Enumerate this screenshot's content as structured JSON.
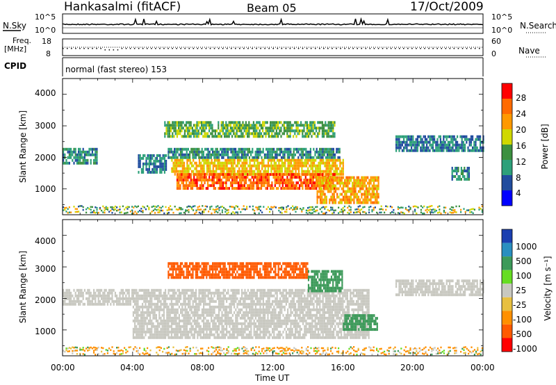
{
  "header": {
    "station": "Hankasalmi (fitACF)",
    "beam": "Beam 05",
    "date": "17/Oct/2009",
    "mode": "normal (fast stereo) 153"
  },
  "noise_panel": {
    "left_label": "N.Sky",
    "right_label": "N.Search",
    "left_ticks": [
      "10^5",
      "10^0"
    ],
    "right_ticks": [
      "10^5",
      "10^0"
    ]
  },
  "freq_panel": {
    "left_label_line1": "Freq.",
    "left_label_line2": "[MHz]",
    "right_label": "Nave",
    "left_ticks": [
      "18",
      "8"
    ],
    "right_ticks": [
      "60",
      "0"
    ]
  },
  "cpid_label": "CPID",
  "power_panel": {
    "ylabel": "Slant Range [km]",
    "colorbar_label": "Power [dB]",
    "colorbar_ticks": [
      "28",
      "24",
      "20",
      "16",
      "12",
      "8",
      "4"
    ],
    "colorbar_colors": [
      "#ff0000",
      "#ff6a00",
      "#ff9900",
      "#d0d800",
      "#3c9040",
      "#2da07a",
      "#204c9e",
      "#0000ff"
    ],
    "yticks": [
      "4000",
      "3000",
      "2000",
      "1000"
    ]
  },
  "velocity_panel": {
    "ylabel": "Slant Range [km]",
    "colorbar_label": "Velocity [m s⁻¹]",
    "colorbar_ticks": [
      "1000",
      "500",
      "100",
      "25",
      "-25",
      "-100",
      "-500",
      "-1000"
    ],
    "colorbar_colors": [
      "#1a3fb0",
      "#2a8fc0",
      "#3d9a5a",
      "#66dd22",
      "#c8c8c0",
      "#e8c040",
      "#ff9000",
      "#ff5a00",
      "#ff0000"
    ],
    "yticks": [
      "4000",
      "3000",
      "2000",
      "1000"
    ]
  },
  "xaxis": {
    "ticks": [
      "00:00",
      "04:00",
      "08:00",
      "12:00",
      "16:00",
      "20:00",
      "00:00"
    ],
    "label": "Time UT"
  },
  "chart_data": {
    "type": "heatmap",
    "title": "Hankasalmi (fitACF) Beam 05 17/Oct/2009",
    "xlabel": "Time UT",
    "ylabel": "Slant Range [km]",
    "x_range_hours": [
      0,
      24
    ],
    "y_range_km": [
      180,
      4500
    ],
    "power_regions": [
      {
        "t0": 0,
        "t1": 2.0,
        "r0": 1850,
        "r1": 2300,
        "dB": 10
      },
      {
        "t0": 4.3,
        "t1": 5.9,
        "r0": 1500,
        "r1": 2100,
        "dB": 8
      },
      {
        "t0": 5.8,
        "t1": 15.5,
        "r0": 2700,
        "r1": 3150,
        "dB": 14
      },
      {
        "t0": 6.0,
        "t1": 15.8,
        "r0": 2000,
        "r1": 2300,
        "dB": 10
      },
      {
        "t0": 6.2,
        "t1": 16.0,
        "r0": 1500,
        "r1": 1950,
        "dB": 20
      },
      {
        "t0": 6.5,
        "t1": 15.5,
        "r0": 1000,
        "r1": 1500,
        "dB": 26
      },
      {
        "t0": 14.5,
        "t1": 18.0,
        "r0": 600,
        "r1": 1400,
        "dB": 22
      },
      {
        "t0": 19.0,
        "t1": 24.0,
        "r0": 2200,
        "r1": 2700,
        "dB": 8
      },
      {
        "t0": 22.2,
        "t1": 23.2,
        "r0": 1300,
        "r1": 1700,
        "dB": 10
      }
    ],
    "velocity_regions": [
      {
        "t0": 0,
        "t1": 4.0,
        "r0": 1850,
        "r1": 2300,
        "v": 0
      },
      {
        "t0": 4.0,
        "t1": 17.5,
        "r0": 800,
        "r1": 2300,
        "v": 0
      },
      {
        "t0": 6.0,
        "t1": 14.0,
        "r0": 2700,
        "r1": 3150,
        "v": -300
      },
      {
        "t0": 14.0,
        "t1": 16.0,
        "r0": 2200,
        "r1": 2900,
        "v": 100
      },
      {
        "t0": 16.0,
        "t1": 18.0,
        "r0": 1050,
        "r1": 1500,
        "v": 120
      },
      {
        "t0": 19.0,
        "t1": 24.0,
        "r0": 2100,
        "r1": 2600,
        "v": 0
      }
    ]
  }
}
